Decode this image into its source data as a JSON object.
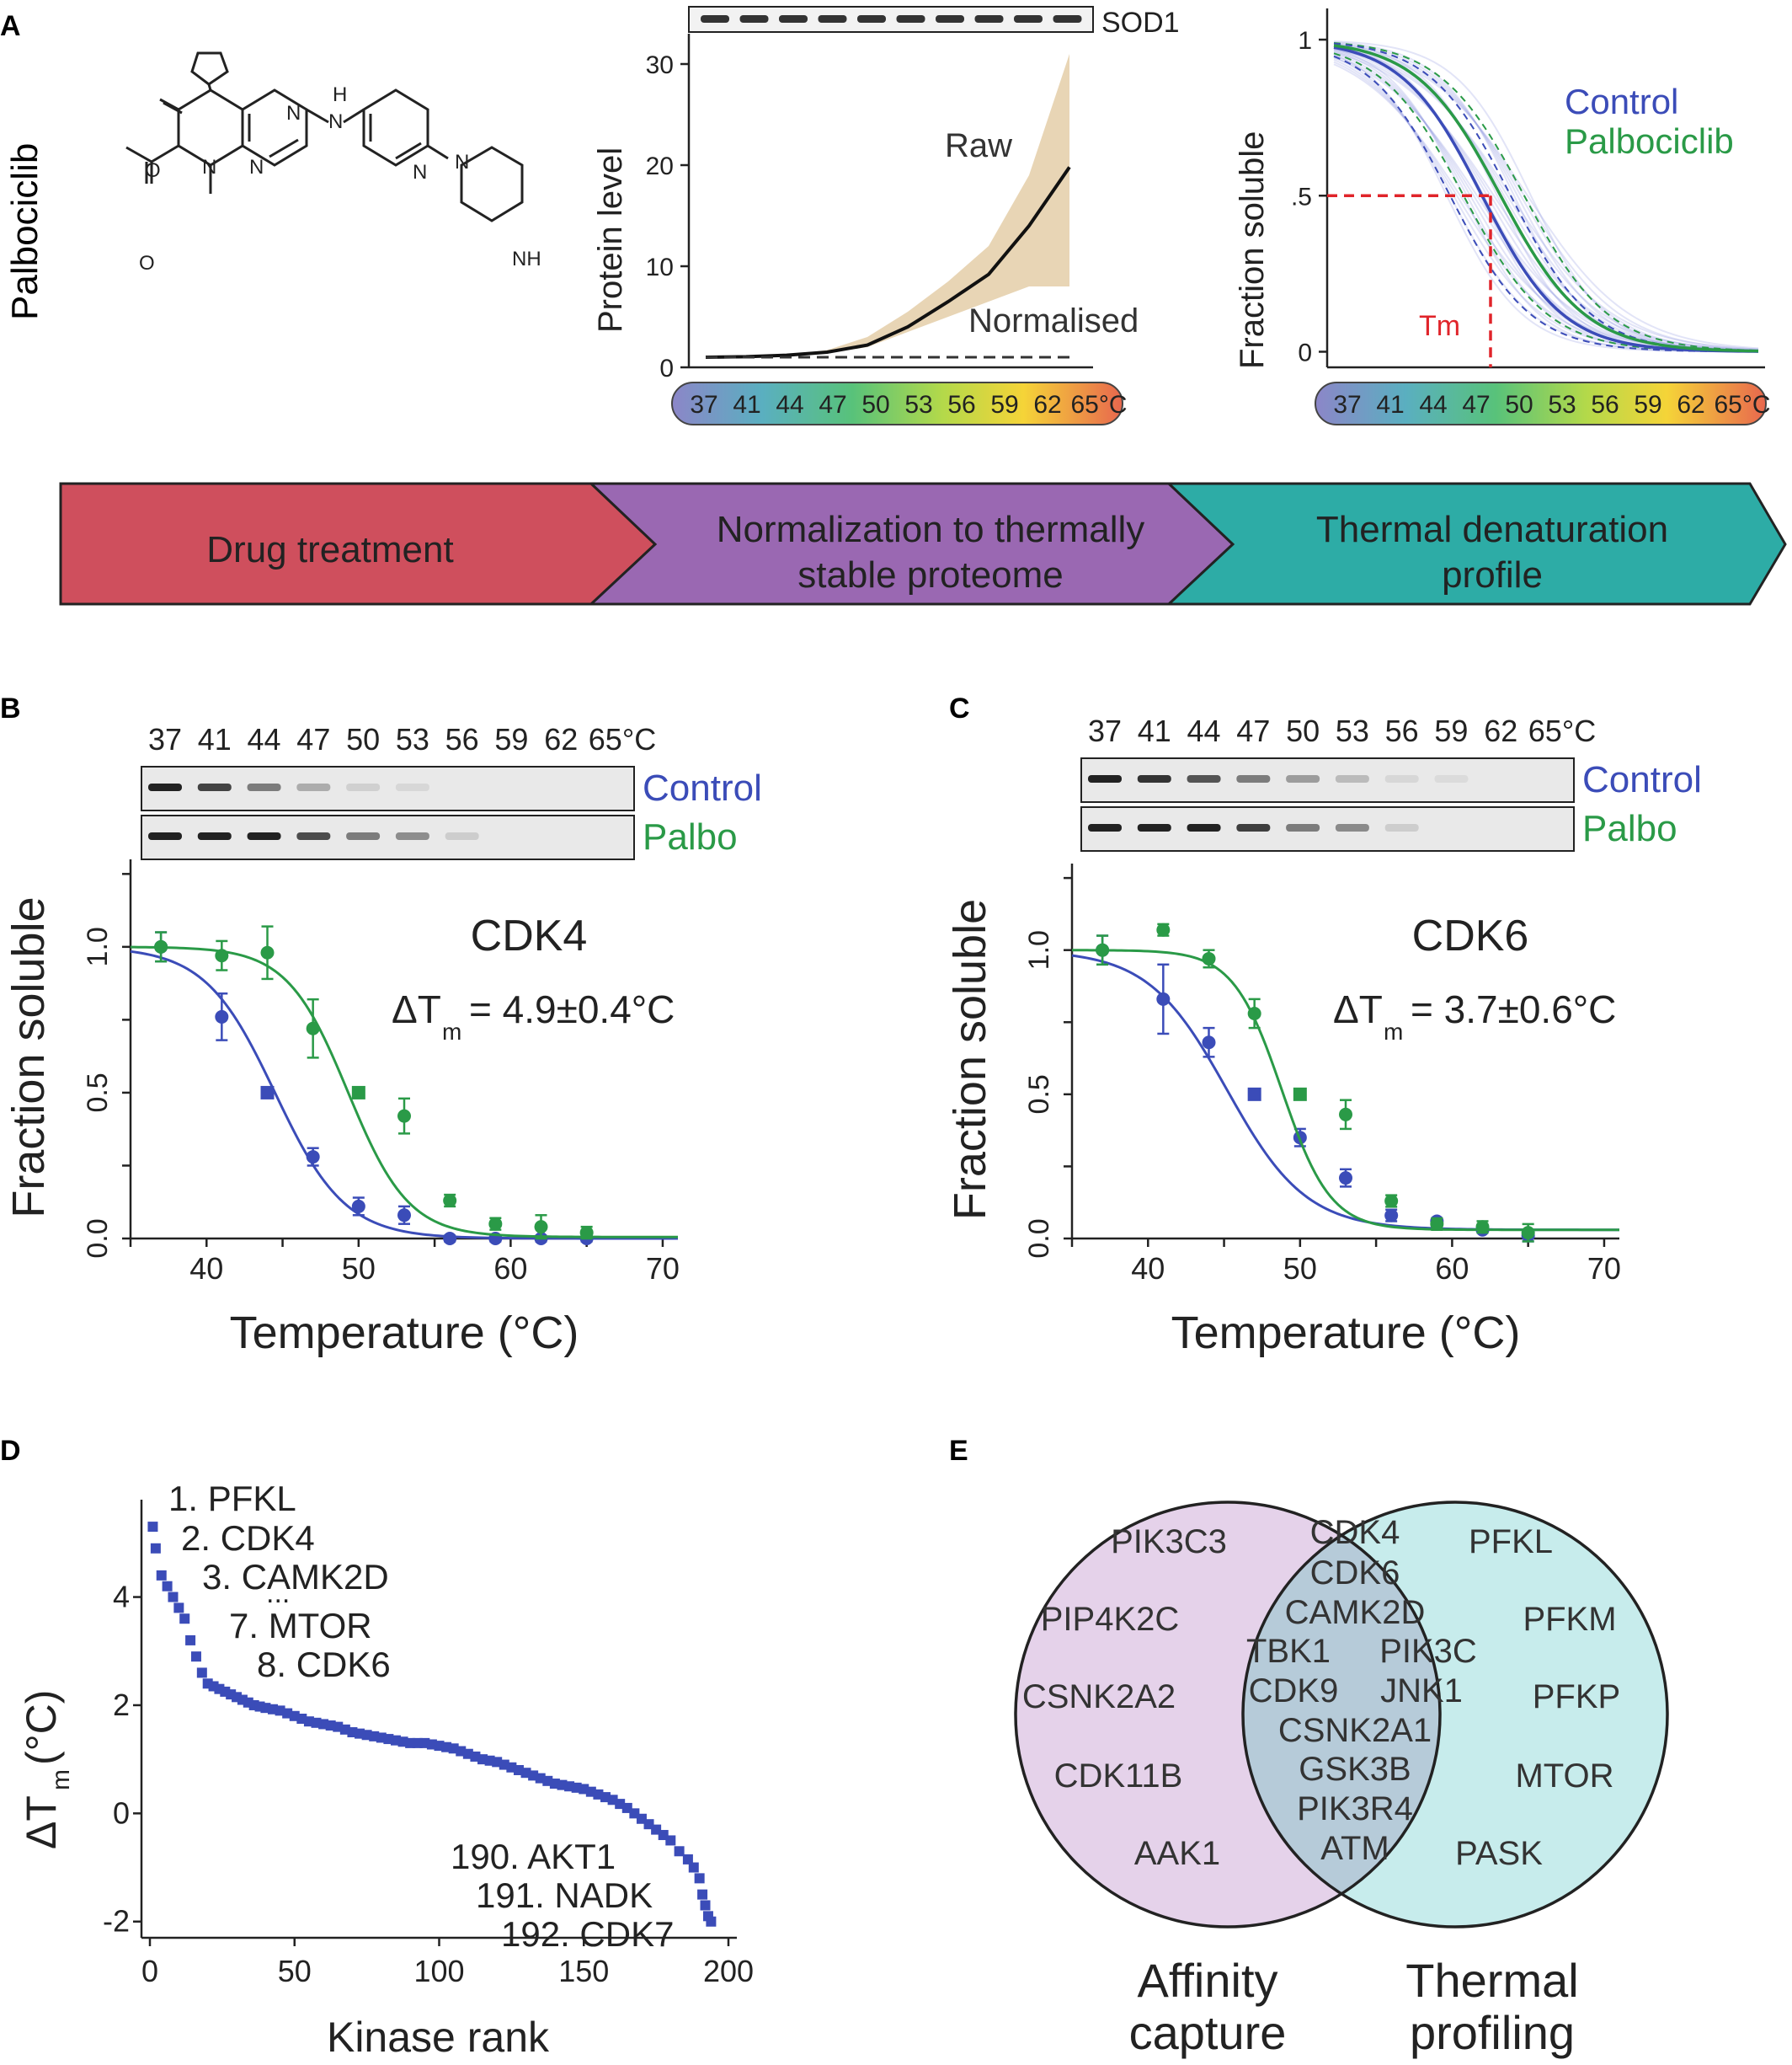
{
  "panel_labels": {
    "A": "A",
    "B": "B",
    "C": "C",
    "D": "D",
    "E": "E"
  },
  "panelA": {
    "drug": "Palbociclib",
    "molecule_labels": [
      "O",
      "N",
      "N",
      "N",
      "H",
      "N",
      "N",
      "O",
      "N",
      "NH"
    ],
    "western_label": "SOD1",
    "temp_scale": [
      "37",
      "41",
      "44",
      "47",
      "50",
      "53",
      "56",
      "59",
      "62",
      "65°C"
    ],
    "flow": [
      "Drug treatment",
      "Normalization to thermally",
      "stable proteome",
      "Thermal denaturation",
      "profile"
    ]
  },
  "chart_data": [
    {
      "id": "A-middle",
      "type": "line",
      "ylabel": "Protein level",
      "ylim": [
        0,
        33
      ],
      "yticks": [
        "0",
        "10",
        "20",
        "30"
      ],
      "x_index": [
        0,
        1,
        2,
        3,
        4,
        5,
        6,
        7,
        8,
        9
      ],
      "series": [
        {
          "name": "Raw",
          "values": [
            1,
            1.05,
            1.2,
            1.5,
            2.2,
            4,
            6.5,
            9.2,
            14,
            19.8
          ],
          "band_low": [
            1,
            1.05,
            1.15,
            1.4,
            2,
            3.5,
            5,
            6.5,
            8,
            8
          ],
          "band_high": [
            1,
            1.05,
            1.25,
            1.7,
            3,
            5.5,
            8.5,
            12,
            19,
            31
          ]
        },
        {
          "name": "Normalised",
          "values": [
            1,
            1,
            1,
            1,
            1,
            1,
            1,
            1,
            1,
            1
          ]
        }
      ]
    },
    {
      "id": "A-right",
      "type": "line",
      "ylabel": "Fraction soluble",
      "ylim": [
        -0.05,
        1.1
      ],
      "yticks": [
        "0",
        ".5",
        "1"
      ],
      "annotation": "Tm",
      "series": [
        {
          "name": "Control",
          "color": "#3B4CB8"
        },
        {
          "name": "Palbociclib",
          "color": "#2A9A47"
        }
      ]
    },
    {
      "id": "B",
      "type": "scatter",
      "title": "CDK4",
      "delta_label": "ΔT",
      "delta_sub": "m",
      "delta_value": "= 4.9±0.4°C",
      "xlabel": "Temperature (°C)",
      "ylabel": "Fraction soluble",
      "xlim": [
        35,
        71
      ],
      "ylim": [
        0,
        1.3
      ],
      "xticks": [
        "40",
        "50",
        "60",
        "70"
      ],
      "yticks": [
        "0.0",
        "0.5",
        "1.0"
      ],
      "blot_labels": [
        "Control",
        "Palbo"
      ],
      "x": [
        37,
        41,
        44,
        47,
        50,
        53,
        56,
        59,
        62,
        65
      ],
      "series": [
        {
          "name": "Control",
          "color": "#3B4CB8",
          "tm": 44.5,
          "slope": 2.3,
          "plateau": 0,
          "values": [
            1.0,
            0.76,
            0.5,
            0.28,
            0.11,
            0.08,
            0.0,
            0.0,
            0.0,
            0.0
          ],
          "err": [
            0.05,
            0.08,
            0.01,
            0.03,
            0.03,
            0.03,
            0.01,
            0.01,
            0.01,
            0.01
          ]
        },
        {
          "name": "Palbo",
          "color": "#2A9A47",
          "tm": 49.3,
          "slope": 2.0,
          "plateau": 0.005,
          "values": [
            1.0,
            0.97,
            0.98,
            0.72,
            0.5,
            0.42,
            0.13,
            0.05,
            0.04,
            0.02
          ],
          "err": [
            0.05,
            0.05,
            0.09,
            0.1,
            0.01,
            0.06,
            0.02,
            0.02,
            0.04,
            0.02
          ]
        }
      ]
    },
    {
      "id": "C",
      "type": "scatter",
      "title": "CDK6",
      "delta_label": "ΔT",
      "delta_sub": "m",
      "delta_value": "= 3.7±0.6°C",
      "xlabel": "Temperature (°C)",
      "ylabel": "Fraction soluble",
      "xlim": [
        35,
        71
      ],
      "ylim": [
        0,
        1.3
      ],
      "xticks": [
        "40",
        "50",
        "60",
        "70"
      ],
      "yticks": [
        "0.0",
        "0.5",
        "1.0"
      ],
      "blot_labels": [
        "Control",
        "Palbo"
      ],
      "x": [
        37,
        41,
        44,
        47,
        50,
        53,
        56,
        59,
        62,
        65
      ],
      "series": [
        {
          "name": "Control",
          "color": "#3B4CB8",
          "tm": 45.2,
          "slope": 2.6,
          "plateau": 0.03,
          "values": [
            1.0,
            0.83,
            0.68,
            0.5,
            0.35,
            0.21,
            0.08,
            0.06,
            0.03,
            0.01
          ],
          "err": [
            0.05,
            0.12,
            0.05,
            0.01,
            0.03,
            0.03,
            0.02,
            0.01,
            0.01,
            0.02
          ]
        },
        {
          "name": "Palbo",
          "color": "#2A9A47",
          "tm": 48.8,
          "slope": 1.6,
          "plateau": 0.03,
          "values": [
            1.0,
            1.07,
            0.97,
            0.78,
            0.5,
            0.43,
            0.13,
            0.05,
            0.04,
            0.02
          ],
          "err": [
            0.05,
            0.02,
            0.03,
            0.05,
            0.01,
            0.05,
            0.02,
            0.02,
            0.02,
            0.03
          ]
        }
      ]
    },
    {
      "id": "D",
      "type": "scatter",
      "xlabel": "Kinase rank",
      "ylabel": "ΔT",
      "ylabel_sub": "m",
      "ylabel_unit": "(°C)",
      "xlim": [
        -5,
        200
      ],
      "ylim": [
        -2.3,
        5.8
      ],
      "xticks": [
        "0",
        "50",
        "100",
        "150",
        "200"
      ],
      "yticks": [
        "-2",
        "0",
        "2",
        "4"
      ],
      "labels_top": [
        "1. PFKL",
        "2. CDK4",
        "3. CAMK2D",
        "...",
        "7. MTOR",
        "8. CDK6"
      ],
      "labels_bottom": [
        "190. AKT1",
        "191. NADK",
        "192. CDK7"
      ],
      "x": [
        1,
        2,
        4,
        6,
        8,
        10,
        12,
        14,
        16,
        18,
        20,
        24,
        28,
        32,
        36,
        40,
        45,
        50,
        55,
        60,
        65,
        70,
        75,
        80,
        85,
        90,
        95,
        100,
        105,
        110,
        115,
        120,
        125,
        130,
        135,
        140,
        145,
        150,
        155,
        160,
        165,
        170,
        175,
        180,
        183,
        186,
        188,
        190,
        191,
        192,
        193,
        194
      ],
      "values": [
        5.3,
        4.9,
        4.4,
        4.2,
        4.0,
        3.8,
        3.6,
        3.2,
        2.9,
        2.6,
        2.4,
        2.3,
        2.2,
        2.1,
        2.0,
        1.95,
        1.9,
        1.8,
        1.7,
        1.65,
        1.6,
        1.5,
        1.45,
        1.4,
        1.35,
        1.3,
        1.3,
        1.25,
        1.2,
        1.1,
        1.0,
        0.95,
        0.85,
        0.75,
        0.65,
        0.55,
        0.5,
        0.45,
        0.35,
        0.25,
        0.1,
        -0.1,
        -0.3,
        -0.5,
        -0.7,
        -0.85,
        -1.0,
        -1.2,
        -1.5,
        -1.7,
        -1.9,
        -2.0
      ]
    }
  ],
  "panelE": {
    "left_only": [
      "PIK3C3",
      "PIP4K2C",
      "CSNK2A2",
      "CDK11B",
      "AAK1"
    ],
    "overlap": [
      "CDK4",
      "CDK6",
      "CAMK2D",
      "TBK1",
      "PIK3C",
      "CDK9",
      "JNK1",
      "CSNK2A1",
      "GSK3B",
      "PIK3R4",
      "ATM"
    ],
    "right_only": [
      "PFKL",
      "PFKM",
      "PFKP",
      "MTOR",
      "PASK"
    ],
    "left_caption": [
      "Affinity",
      "capture"
    ],
    "right_caption": [
      "Thermal",
      "profiling"
    ]
  },
  "colors": {
    "control": "#3B4CB8",
    "palbo": "#2A9A47",
    "drug_box": "#CF4F5D",
    "norm_box": "#9A68B2",
    "thermal_box": "#2DACA6",
    "venn_left": "#E5D2EA",
    "venn_right": "#C7ECEC",
    "venn_overlap": "#B6CBD9",
    "tm_red": "#E0242A",
    "band": "#E8D5B5"
  }
}
